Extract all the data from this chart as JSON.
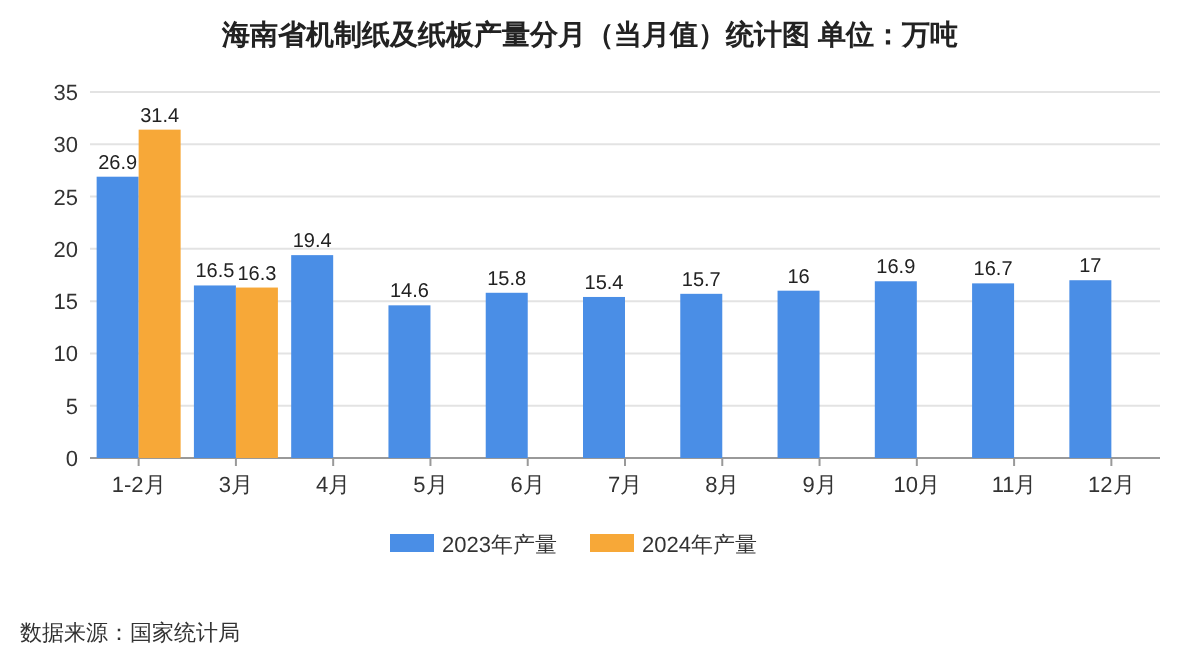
{
  "chart_data": {
    "type": "bar",
    "title": "海南省机制纸及纸板产量分月（当月值）统计图  单位：万吨",
    "categories": [
      "1-2月",
      "3月",
      "4月",
      "5月",
      "6月",
      "7月",
      "8月",
      "9月",
      "10月",
      "11月",
      "12月"
    ],
    "series": [
      {
        "name": "2023年产量",
        "color": "#4a8ee6",
        "values": [
          26.9,
          16.5,
          19.4,
          14.6,
          15.8,
          15.4,
          15.7,
          16,
          16.9,
          16.7,
          17
        ]
      },
      {
        "name": "2024年产量",
        "color": "#f7a838",
        "values": [
          31.4,
          16.3,
          null,
          null,
          null,
          null,
          null,
          null,
          null,
          null,
          null
        ]
      }
    ],
    "ylim": [
      0,
      35
    ],
    "yticks": [
      0,
      5,
      10,
      15,
      20,
      25,
      30,
      35
    ],
    "grid": "y",
    "legend": "bottom",
    "data_labels": true,
    "annotations": [
      "数据来源：国家统计局"
    ]
  }
}
